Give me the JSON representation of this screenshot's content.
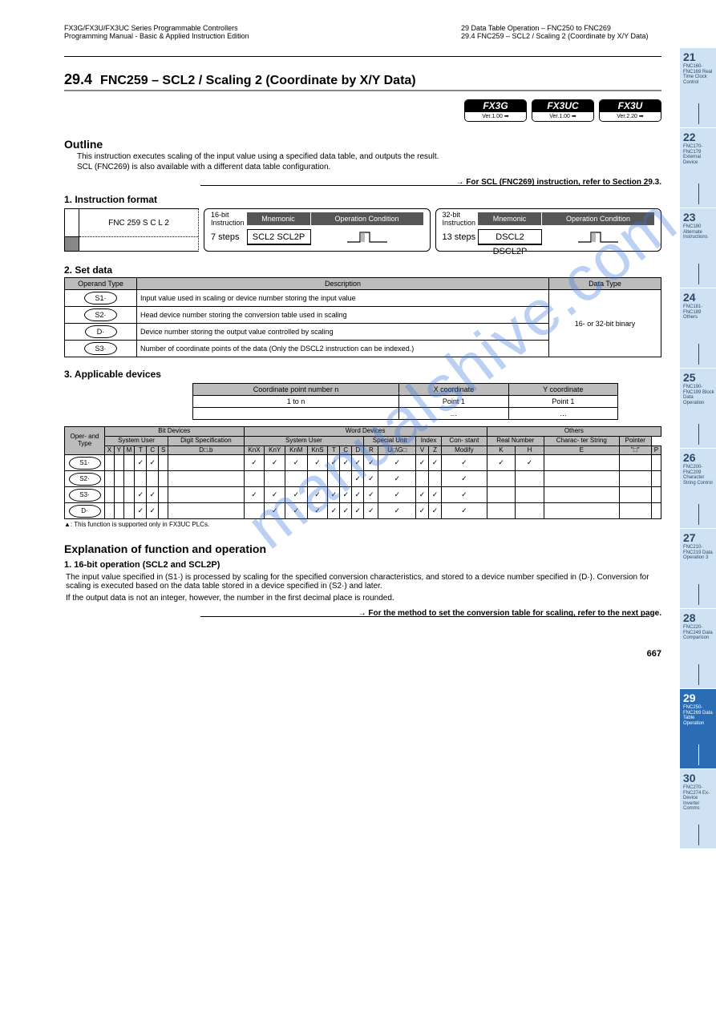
{
  "header": {
    "left_line1": "FX3G/FX3U/FX3UC Series Programmable Controllers",
    "left_line2": "Programming Manual - Basic & Applied Instruction Edition",
    "right_line1": "29 Data Table Operation – FNC250 to FNC269",
    "right_line2": "29.4 FNC259 – SCL2 / Scaling 2 (Coordinate by X/Y Data)"
  },
  "section": {
    "num": "29.4",
    "title": "FNC259 – SCL2 / Scaling 2 (Coordinate by X/Y Data)"
  },
  "badges": [
    {
      "top": "FX3G",
      "bot": "Ver.1.00 ➡"
    },
    {
      "top": "FX3UC",
      "bot": "Ver.1.00 ➡"
    },
    {
      "top": "FX3U",
      "bot": "Ver.2.20 ➡"
    }
  ],
  "outline": {
    "title": "Outline",
    "body1": "This instruction executes scaling of the input value using a specified data table, and outputs the result.",
    "body2": "SCL (FNC269) is also available with a different data table configuration.",
    "ref": "→ For SCL (FNC269) instruction, refer to Section 29.3."
  },
  "format": {
    "title": "1. Instruction format",
    "fnc_box": "FNC 259\nS C L 2",
    "_fnc_footer": "P",
    "inst16": {
      "label": "16-bit Instruction",
      "mnem_hdr": "Mnemonic",
      "cond_hdr": "Operation Condition",
      "steps": "7 steps",
      "name": "SCL2\nSCL2P",
      "wave": "Continuous Operation / Pulse (Single) Operation"
    },
    "inst32": {
      "label": "32-bit Instruction",
      "mnem_hdr": "Mnemonic",
      "cond_hdr": "Operation Condition",
      "steps": "13 steps",
      "name": "DSCL2\nDSCL2P",
      "wave": "Continuous Operation / Pulse (Single) Operation"
    }
  },
  "operands": {
    "title": "2. Set data",
    "headers": [
      "Operand Type",
      "Description",
      "Data Type"
    ],
    "rows": [
      {
        "op": "S1·",
        "desc": "Input value used in scaling or device number storing the input value",
        "dtype": "16- or 32-bit binary"
      },
      {
        "op": "S2·",
        "desc": "Head device number storing the conversion table used in scaling",
        "dtype": ""
      },
      {
        "op": "D·",
        "desc": "Device number storing the output value controlled by scaling",
        "dtype": ""
      },
      {
        "op": "S3·",
        "desc": "Number of coordinate points of the data (Only the DSCL2 instruction can be indexed.)",
        "dtype": ""
      }
    ]
  },
  "devices": {
    "title": "3. Applicable devices",
    "mini": {
      "headers": [
        "Coordinate point number n",
        "X coordinate",
        "Y coordinate"
      ],
      "rows": [
        [
          "1 to n",
          "Point 1",
          "Point 1"
        ],
        [
          "",
          "…",
          "…"
        ]
      ]
    },
    "main_headers": {
      "group_top": [
        "Oper-\nand\nType",
        "Bit Devices",
        "Word Devices",
        "Others"
      ],
      "group_mid": [
        "System User",
        "Digit Specification",
        "System User",
        "Special\nUnit",
        "Index",
        "Con-\nstant",
        "Real\nNumber",
        "Charac-\nter String",
        "Pointer"
      ],
      "cols": [
        "X",
        "Y",
        "M",
        "T",
        "C",
        "S",
        "D□.b",
        "KnX",
        "KnY",
        "KnM",
        "KnS",
        "T",
        "C",
        "D",
        "R",
        "U□\\G□",
        "V",
        "Z",
        "Modify",
        "K",
        "H",
        "E",
        "\"□\"",
        "P"
      ]
    },
    "row_ops": [
      "S1·",
      "S2·",
      "S3·",
      "D·"
    ],
    "checks": {
      "S1·": {
        "KnX": true,
        "KnY": true,
        "KnM": true,
        "KnS": true,
        "T": true,
        "C": true,
        "D": true,
        "R": true,
        "U□\\G□": true,
        "V": true,
        "Z": true,
        "Modify": true,
        "K": true,
        "H": true
      },
      "S2·": {
        "D": true,
        "R": true,
        "U□\\G□": true,
        "Modify": true
      },
      "S3·": {
        "KnX": true,
        "KnY": true,
        "KnM": true,
        "KnS": true,
        "T": true,
        "C": true,
        "D": true,
        "R": true,
        "U□\\G□": true,
        "V": true,
        "Z": true,
        "Modify": true
      },
      "D·": {
        "KnY": true,
        "KnM": true,
        "KnS": true,
        "T": true,
        "C": true,
        "D": true,
        "R": true,
        "U□\\G□": true,
        "V": true,
        "Z": true,
        "Modify": true
      }
    },
    "footnote": "▲: This function is supported only in FX3UC PLCs."
  },
  "explain": {
    "title": "Explanation of function and operation",
    "sub": "1. 16-bit operation (SCL2 and SCL2P)",
    "lines": [
      "The input value specified in (S1·) is processed by scaling for the specified conversion characteristics, and stored to a device number specified in (D·). Conversion for scaling is executed based on the data table stored in a device specified in (S2·) and later.",
      "If the output data is not an integer, however, the number in the first decimal place is rounded."
    ],
    "ref": "→ For the method to set the conversion table for scaling, refer to the next page."
  },
  "page_number": "667",
  "tabs": [
    {
      "n": "21",
      "lbl": "FNC160-FNC169\nReal Time Clock\nControl"
    },
    {
      "n": "22",
      "lbl": "FNC170-FNC179\nExternal Device"
    },
    {
      "n": "23",
      "lbl": "FNC180\nAlternate\nInstructions"
    },
    {
      "n": "24",
      "lbl": "FNC181-FNC189\nOthers"
    },
    {
      "n": "25",
      "lbl": "FNC190-FNC199\nBlock Data\nOperation"
    },
    {
      "n": "26",
      "lbl": "FNC200-FNC209\nCharacter String\nControl"
    },
    {
      "n": "27",
      "lbl": "FNC210-FNC219\nData\nOperation 3"
    },
    {
      "n": "28",
      "lbl": "FNC220-FNC249\nData\nComparison"
    },
    {
      "n": "29",
      "lbl": "FNC250-FNC269\nData Table\nOperation",
      "active": true
    },
    {
      "n": "30",
      "lbl": "FNC270-FNC274\nEx-Device\nInverter Comms"
    }
  ],
  "watermark": "manualshive.com"
}
